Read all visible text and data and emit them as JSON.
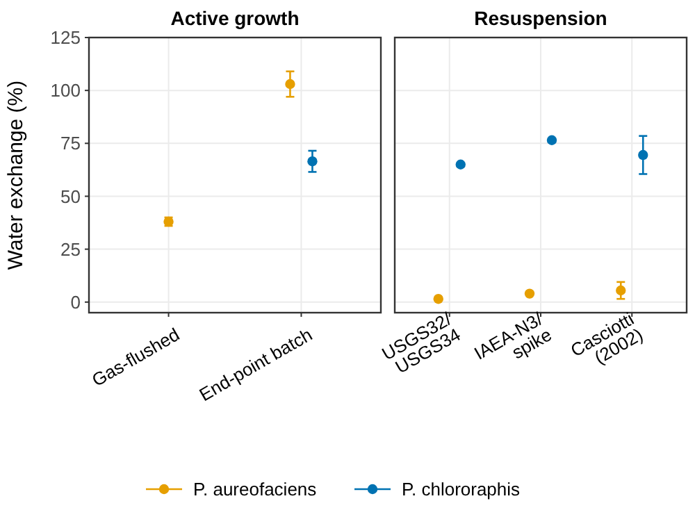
{
  "chart_data": [
    {
      "type": "scatter",
      "title": "Active growth",
      "ylabel": "Water exchange (%)",
      "categories": [
        "Gas-flushed",
        "End-point batch"
      ],
      "ylim": [
        -5,
        125
      ],
      "yticks": [
        0,
        25,
        50,
        75,
        100,
        125
      ],
      "grid": true,
      "legend": "bottom",
      "marker": "circle",
      "series": [
        {
          "name": "P. aureofaciens",
          "color": "#e69f00",
          "values": [
            38,
            103
          ],
          "errors": [
            2,
            6
          ]
        },
        {
          "name": "P. chlororaphis",
          "color": "#0072b2",
          "values": [
            null,
            66.5
          ],
          "errors": [
            null,
            5
          ]
        }
      ]
    },
    {
      "type": "scatter",
      "title": "Resuspension",
      "categories": [
        "USGS32/\nUSGS34",
        "IAEA-N3/\nspike",
        "Casciotti\n(2002)"
      ],
      "ylim": [
        -5,
        125
      ],
      "yticks": [
        0,
        25,
        50,
        75,
        100,
        125
      ],
      "grid": true,
      "tick_labels": "x",
      "marker": "circle",
      "series": [
        {
          "color": "#e69f00",
          "values": [
            1.5,
            4,
            5.5
          ],
          "errors": [
            null,
            null,
            4
          ]
        },
        {
          "color": "#0072b2",
          "values": [
            65,
            76.5,
            69.5
          ],
          "errors": [
            null,
            null,
            9
          ]
        }
      ]
    }
  ]
}
